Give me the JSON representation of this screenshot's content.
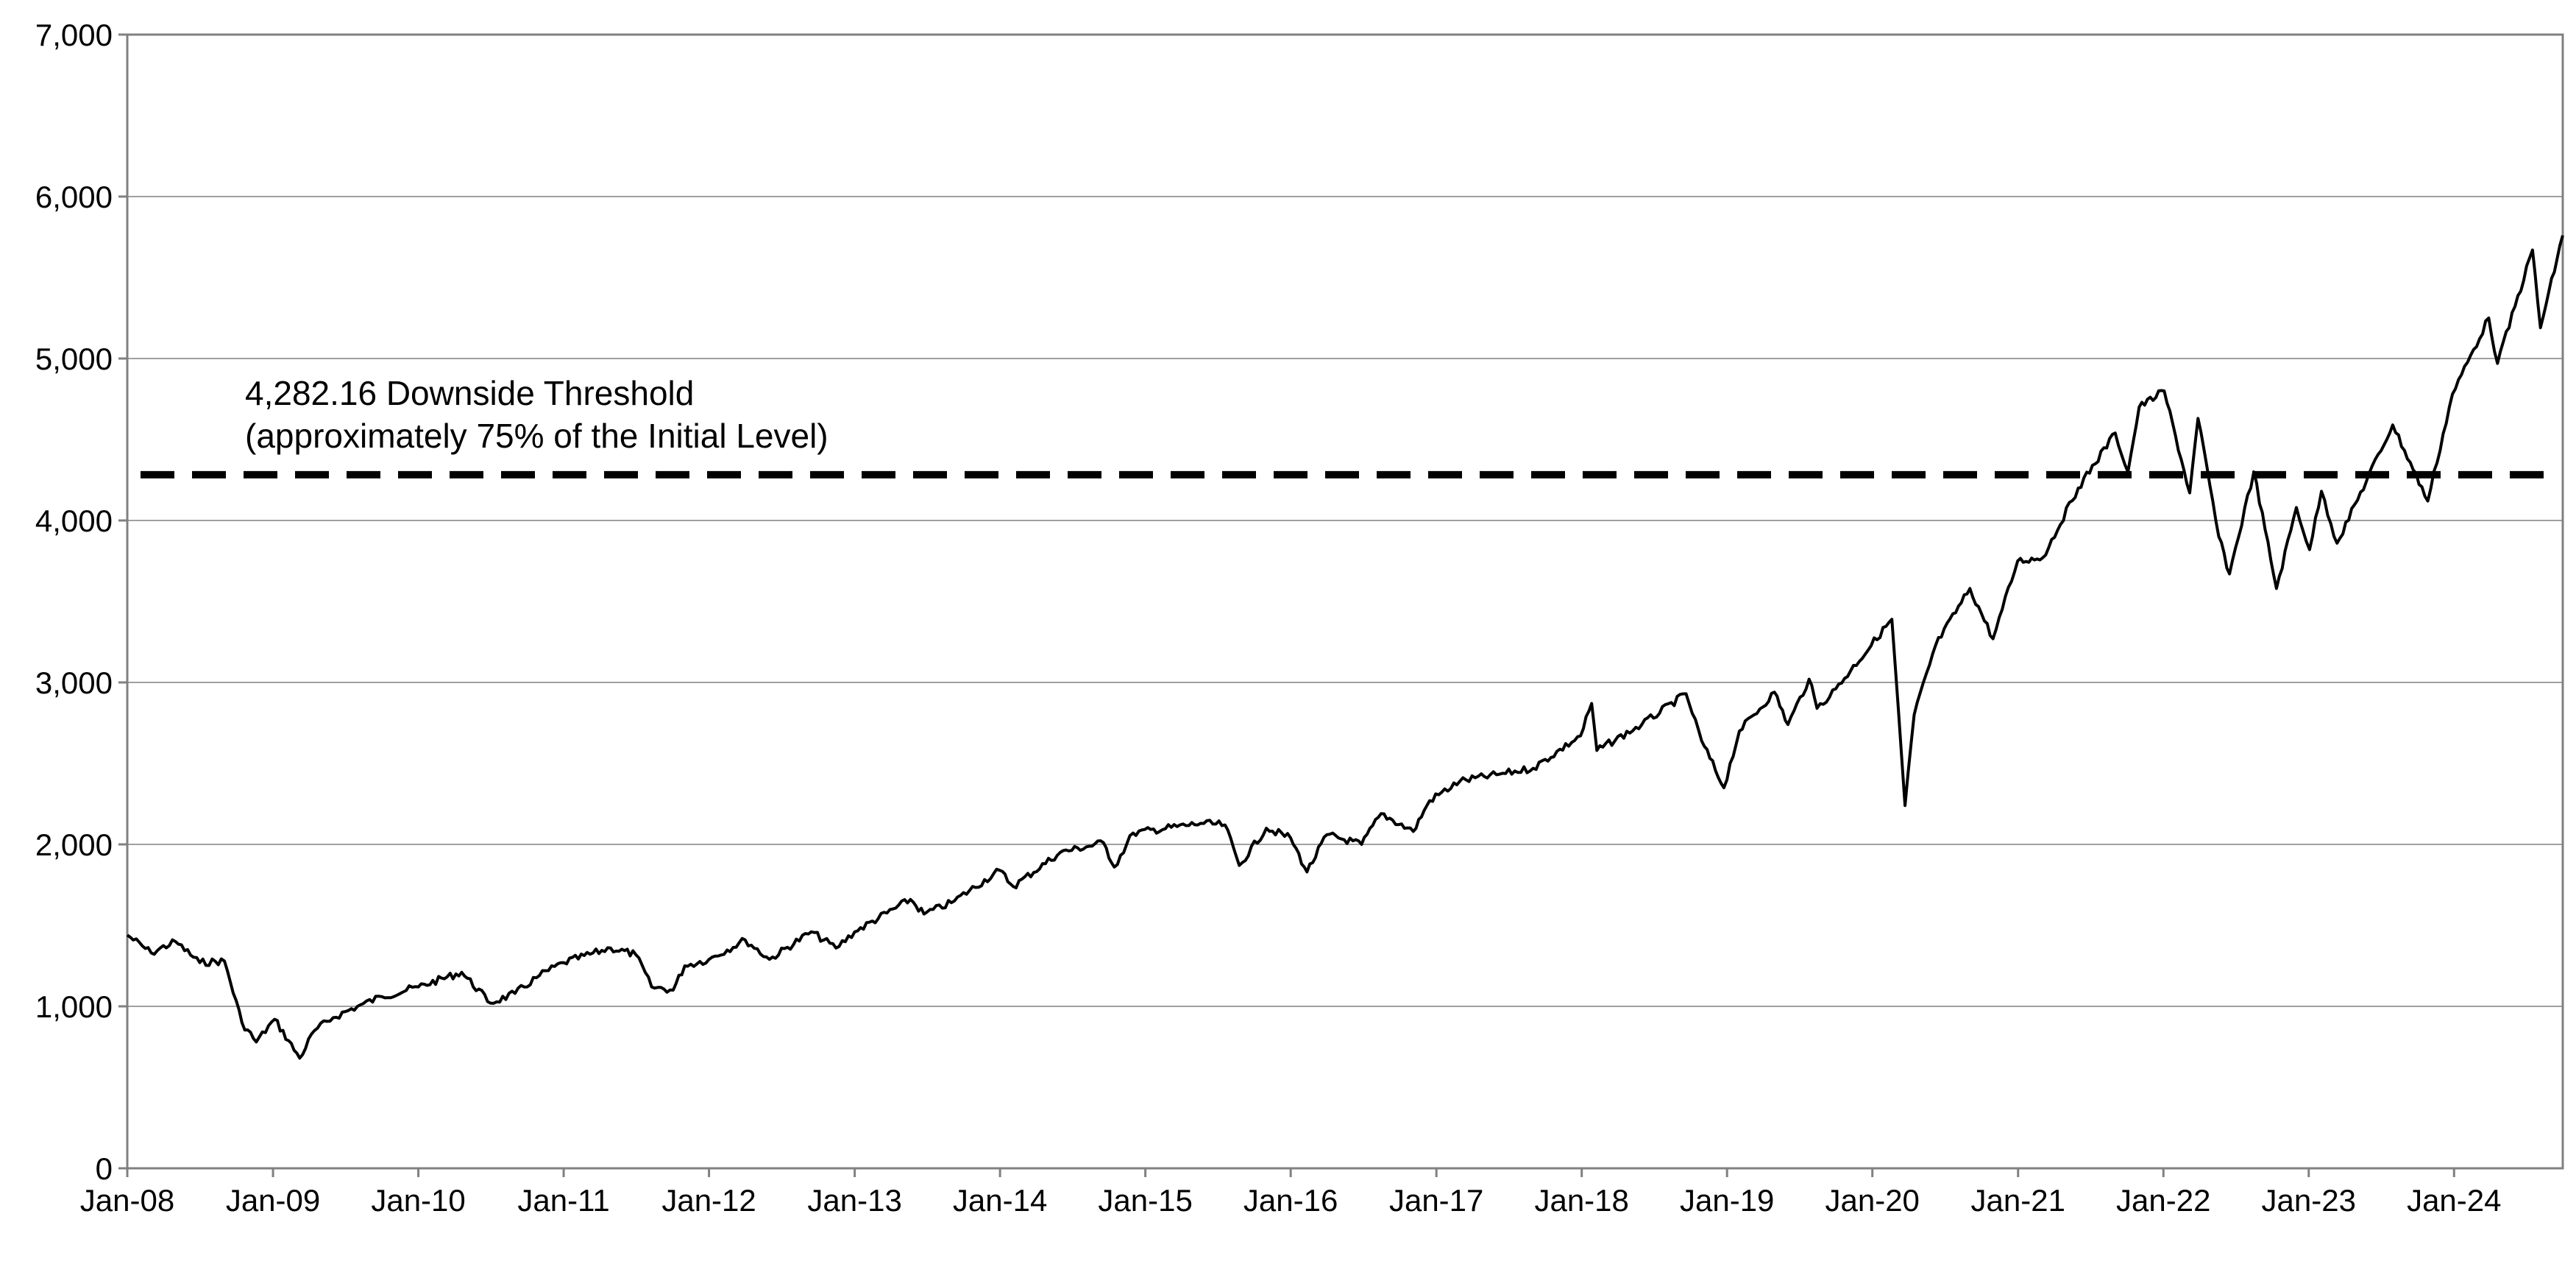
{
  "chart_data": {
    "type": "line",
    "title": "",
    "xlabel": "",
    "ylabel": "",
    "ylim": [
      0,
      7000
    ],
    "yticks": [
      0,
      1000,
      2000,
      3000,
      4000,
      5000,
      6000,
      7000
    ],
    "ytick_labels": [
      "0",
      "1,000",
      "2,000",
      "3,000",
      "4,000",
      "5,000",
      "6,000",
      "7,000"
    ],
    "xlim": [
      "2008-01-01",
      "2024-09-30"
    ],
    "xticks": [
      "2008-01-01",
      "2009-01-01",
      "2010-01-01",
      "2011-01-01",
      "2012-01-01",
      "2013-01-01",
      "2014-01-01",
      "2015-01-01",
      "2016-01-01",
      "2017-01-01",
      "2018-01-01",
      "2019-01-01",
      "2020-01-01",
      "2021-01-01",
      "2022-01-01",
      "2023-01-01",
      "2024-01-01"
    ],
    "xtick_labels": [
      "Jan-08",
      "Jan-09",
      "Jan-10",
      "Jan-11",
      "Jan-12",
      "Jan-13",
      "Jan-14",
      "Jan-15",
      "Jan-16",
      "Jan-17",
      "Jan-18",
      "Jan-19",
      "Jan-20",
      "Jan-21",
      "Jan-22",
      "Jan-23",
      "Jan-24"
    ],
    "grid": "horizontal",
    "series": [
      {
        "color": "#000000",
        "points": [
          [
            "2008-01-01",
            1440
          ],
          [
            "2008-03-01",
            1330
          ],
          [
            "2008-05-01",
            1400
          ],
          [
            "2008-07-01",
            1270
          ],
          [
            "2008-09-01",
            1280
          ],
          [
            "2008-10-15",
            900
          ],
          [
            "2008-11-20",
            780
          ],
          [
            "2009-01-05",
            920
          ],
          [
            "2009-03-09",
            680
          ],
          [
            "2009-04-15",
            850
          ],
          [
            "2009-06-01",
            930
          ],
          [
            "2009-08-01",
            1000
          ],
          [
            "2009-10-01",
            1060
          ],
          [
            "2010-01-01",
            1120
          ],
          [
            "2010-04-20",
            1210
          ],
          [
            "2010-07-01",
            1020
          ],
          [
            "2010-09-01",
            1080
          ],
          [
            "2010-11-01",
            1190
          ],
          [
            "2011-01-01",
            1270
          ],
          [
            "2011-04-29",
            1360
          ],
          [
            "2011-07-01",
            1320
          ],
          [
            "2011-08-10",
            1120
          ],
          [
            "2011-10-03",
            1100
          ],
          [
            "2011-11-01",
            1250
          ],
          [
            "2012-01-01",
            1290
          ],
          [
            "2012-04-01",
            1410
          ],
          [
            "2012-06-01",
            1290
          ],
          [
            "2012-09-14",
            1460
          ],
          [
            "2012-11-15",
            1360
          ],
          [
            "2013-01-01",
            1460
          ],
          [
            "2013-05-21",
            1660
          ],
          [
            "2013-06-24",
            1570
          ],
          [
            "2013-09-01",
            1640
          ],
          [
            "2013-12-31",
            1840
          ],
          [
            "2014-02-03",
            1740
          ],
          [
            "2014-06-01",
            1950
          ],
          [
            "2014-09-18",
            2010
          ],
          [
            "2014-10-15",
            1860
          ],
          [
            "2014-12-01",
            2070
          ],
          [
            "2015-05-20",
            2130
          ],
          [
            "2015-07-20",
            2120
          ],
          [
            "2015-08-25",
            1870
          ],
          [
            "2015-11-01",
            2100
          ],
          [
            "2016-01-01",
            2040
          ],
          [
            "2016-02-11",
            1830
          ],
          [
            "2016-04-01",
            2060
          ],
          [
            "2016-06-27",
            2000
          ],
          [
            "2016-08-15",
            2190
          ],
          [
            "2016-11-04",
            2080
          ],
          [
            "2016-12-15",
            2270
          ],
          [
            "2017-03-01",
            2390
          ],
          [
            "2017-06-01",
            2430
          ],
          [
            "2017-09-01",
            2470
          ],
          [
            "2017-12-29",
            2670
          ],
          [
            "2018-01-26",
            2870
          ],
          [
            "2018-02-08",
            2580
          ],
          [
            "2018-06-01",
            2740
          ],
          [
            "2018-09-20",
            2930
          ],
          [
            "2018-10-29",
            2640
          ],
          [
            "2018-12-24",
            2350
          ],
          [
            "2019-02-01",
            2700
          ],
          [
            "2019-04-30",
            2940
          ],
          [
            "2019-06-03",
            2740
          ],
          [
            "2019-07-26",
            3020
          ],
          [
            "2019-08-15",
            2840
          ],
          [
            "2019-10-01",
            2960
          ],
          [
            "2020-02-19",
            3390
          ],
          [
            "2020-03-23",
            2240
          ],
          [
            "2020-04-15",
            2800
          ],
          [
            "2020-06-08",
            3230
          ],
          [
            "2020-09-02",
            3580
          ],
          [
            "2020-10-30",
            3270
          ],
          [
            "2020-12-31",
            3750
          ],
          [
            "2021-03-04",
            3770
          ],
          [
            "2021-06-01",
            4200
          ],
          [
            "2021-09-02",
            4540
          ],
          [
            "2021-10-04",
            4300
          ],
          [
            "2021-11-01",
            4700
          ],
          [
            "2022-01-03",
            4800
          ],
          [
            "2022-03-08",
            4170
          ],
          [
            "2022-03-29",
            4630
          ],
          [
            "2022-05-20",
            3900
          ],
          [
            "2022-06-16",
            3670
          ],
          [
            "2022-08-16",
            4300
          ],
          [
            "2022-10-12",
            3580
          ],
          [
            "2022-12-01",
            4080
          ],
          [
            "2023-01-03",
            3820
          ],
          [
            "2023-02-02",
            4180
          ],
          [
            "2023-03-13",
            3860
          ],
          [
            "2023-07-31",
            4590
          ],
          [
            "2023-10-27",
            4120
          ],
          [
            "2023-12-28",
            4780
          ],
          [
            "2024-03-28",
            5250
          ],
          [
            "2024-04-19",
            4970
          ],
          [
            "2024-07-16",
            5670
          ],
          [
            "2024-08-05",
            5190
          ],
          [
            "2024-09-30",
            5760
          ]
        ]
      }
    ],
    "threshold": {
      "value": 4282.16,
      "label_line1": "4,282.16 Downside Threshold",
      "label_line2": "(approximately 75% of the Initial Level)",
      "style": "dashed",
      "color": "#000000"
    }
  }
}
